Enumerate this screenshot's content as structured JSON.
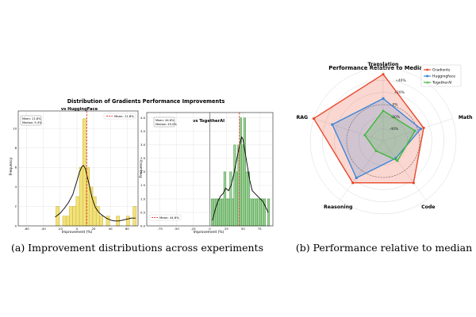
{
  "figure": {
    "left_caption": "(a) Improvement distributions across experiments",
    "right_caption": "(b) Performance relative to median"
  },
  "colors": {
    "hf_bar_fill": "#f2e27a",
    "hf_bar_stroke": "#c9b13a",
    "ta_bar_fill": "#9fd39a",
    "ta_bar_stroke": "#3f8f3b",
    "kde": "#000000",
    "mean_line": "#e03a2f",
    "zero_line": "#555555",
    "gradients": "#e8472a",
    "huggingface": "#3d86d8",
    "togetherai": "#3fb83a",
    "median_circle": "#666666"
  },
  "chart_data": [
    {
      "type": "bar",
      "subtype": "histogram",
      "suptitle": "Distribution of Gradients Performance Improvements",
      "title": "vs HuggingFace",
      "xlabel": "Improvement (%)",
      "ylabel": "Frequency",
      "xlim": [
        -70,
        73
      ],
      "ylim": [
        0,
        11.8
      ],
      "xticks": [
        -60,
        -40,
        -20,
        0,
        20,
        40,
        60
      ],
      "yticks": [
        0,
        2,
        4,
        6,
        8,
        10
      ],
      "grid": true,
      "bins": [
        {
          "x0": -25,
          "x1": -21,
          "value": 2
        },
        {
          "x0": -17,
          "x1": -13,
          "value": 1
        },
        {
          "x0": -13,
          "x1": -9,
          "value": 1
        },
        {
          "x0": -9,
          "x1": -5,
          "value": 2
        },
        {
          "x0": -5,
          "x1": -1,
          "value": 2
        },
        {
          "x0": -1,
          "x1": 3,
          "value": 3
        },
        {
          "x0": 3,
          "x1": 7,
          "value": 6
        },
        {
          "x0": 7,
          "x1": 11,
          "value": 11
        },
        {
          "x0": 11,
          "x1": 15,
          "value": 6
        },
        {
          "x0": 15,
          "x1": 19,
          "value": 4
        },
        {
          "x0": 19,
          "x1": 23,
          "value": 3
        },
        {
          "x0": 23,
          "x1": 27,
          "value": 2
        },
        {
          "x0": 27,
          "x1": 31,
          "value": 1
        },
        {
          "x0": 35,
          "x1": 39,
          "value": 1
        },
        {
          "x0": 47,
          "x1": 51,
          "value": 1
        },
        {
          "x0": 59,
          "x1": 63,
          "value": 1
        },
        {
          "x0": 67,
          "x1": 71,
          "value": 2
        }
      ],
      "kde": {
        "x": [
          -26,
          -20,
          -15,
          -10,
          -5,
          0,
          3,
          6,
          8,
          10,
          12,
          15,
          18,
          22,
          26,
          30,
          35,
          40,
          45,
          50,
          55,
          60,
          65,
          70
        ],
        "y": [
          0.9,
          1.3,
          1.8,
          2.4,
          3.2,
          4.6,
          5.5,
          6.1,
          6.2,
          5.9,
          5.2,
          4.1,
          2.9,
          1.9,
          1.4,
          1.1,
          0.8,
          0.6,
          0.5,
          0.5,
          0.6,
          0.7,
          0.8,
          0.8
        ]
      },
      "mean": 11.8,
      "mean_legend": "Mean: 11.8%",
      "stats_box": [
        "Mean: 11.8%",
        "Median: 9.3%"
      ]
    },
    {
      "type": "bar",
      "subtype": "histogram",
      "title": "vs TogetherAI",
      "xlabel": "Improvement (%)",
      "ylabel": "Frequency",
      "xlim": [
        -95,
        95
      ],
      "ylim": [
        0,
        4.2
      ],
      "xticks": [
        -75,
        -50,
        -25,
        0,
        25,
        50,
        75
      ],
      "yticks": [
        0.0,
        0.5,
        1.0,
        1.5,
        2.0,
        2.5,
        3.0,
        3.5,
        4.0
      ],
      "grid": true,
      "bins": [
        {
          "x0": 2,
          "x1": 5,
          "value": 1
        },
        {
          "x0": 6,
          "x1": 9,
          "value": 1
        },
        {
          "x0": 9,
          "x1": 12,
          "value": 1
        },
        {
          "x0": 12,
          "x1": 15,
          "value": 1
        },
        {
          "x0": 15,
          "x1": 18,
          "value": 1
        },
        {
          "x0": 18,
          "x1": 21,
          "value": 1
        },
        {
          "x0": 21,
          "x1": 24,
          "value": 2
        },
        {
          "x0": 24,
          "x1": 27,
          "value": 1
        },
        {
          "x0": 27,
          "x1": 30,
          "value": 1
        },
        {
          "x0": 30,
          "x1": 33,
          "value": 2
        },
        {
          "x0": 33,
          "x1": 36,
          "value": 1
        },
        {
          "x0": 36,
          "x1": 39,
          "value": 3
        },
        {
          "x0": 39,
          "x1": 42,
          "value": 2
        },
        {
          "x0": 42,
          "x1": 45,
          "value": 3
        },
        {
          "x0": 45,
          "x1": 48,
          "value": 4
        },
        {
          "x0": 48,
          "x1": 51,
          "value": 3
        },
        {
          "x0": 51,
          "x1": 54,
          "value": 4
        },
        {
          "x0": 54,
          "x1": 57,
          "value": 2
        },
        {
          "x0": 57,
          "x1": 60,
          "value": 2
        },
        {
          "x0": 60,
          "x1": 63,
          "value": 1
        },
        {
          "x0": 63,
          "x1": 66,
          "value": 1
        },
        {
          "x0": 66,
          "x1": 69,
          "value": 1
        },
        {
          "x0": 69,
          "x1": 72,
          "value": 1
        },
        {
          "x0": 72,
          "x1": 75,
          "value": 1
        },
        {
          "x0": 75,
          "x1": 78,
          "value": 1
        },
        {
          "x0": 78,
          "x1": 81,
          "value": 1
        },
        {
          "x0": 81,
          "x1": 84,
          "value": 1
        },
        {
          "x0": 87,
          "x1": 90,
          "value": 1
        }
      ],
      "kde": {
        "x": [
          4,
          8,
          12,
          16,
          20,
          24,
          28,
          32,
          36,
          40,
          44,
          48,
          50,
          52,
          56,
          60,
          64,
          68,
          72,
          76,
          80,
          84,
          88
        ],
        "y": [
          0.2,
          0.6,
          0.9,
          1.1,
          1.2,
          1.4,
          1.3,
          1.5,
          1.9,
          2.4,
          2.9,
          3.3,
          3.2,
          2.9,
          2.3,
          1.7,
          1.3,
          1.2,
          1.1,
          1.0,
          0.9,
          0.7,
          0.5
        ]
      },
      "mean": 44.6,
      "mean_legend": "Mean: 44.6%",
      "stats_box": [
        "Mean: 44.6%",
        "Median: 45.0%"
      ]
    },
    {
      "type": "radar",
      "title": "Performance Relative to Median",
      "axes": [
        "Translation",
        "Math",
        "Code",
        "Reasoning",
        "RAG"
      ],
      "radial_range": [
        -60,
        60
      ],
      "radial_ticks": [
        -40,
        -20,
        0,
        20,
        40
      ],
      "radial_tick_labels": [
        "-40%",
        "-20%",
        "0%",
        "+20%",
        "+40%"
      ],
      "series": [
        {
          "name": "Gradients",
          "values": [
            50,
            10,
            25,
            25,
            60
          ]
        },
        {
          "name": "Huggingface",
          "values": [
            10,
            5,
            -25,
            15,
            28
          ]
        },
        {
          "name": "TogetherAI",
          "values": [
            -10,
            -5,
            -20,
            -40,
            -28
          ]
        }
      ],
      "legend_position": "top-right"
    }
  ]
}
